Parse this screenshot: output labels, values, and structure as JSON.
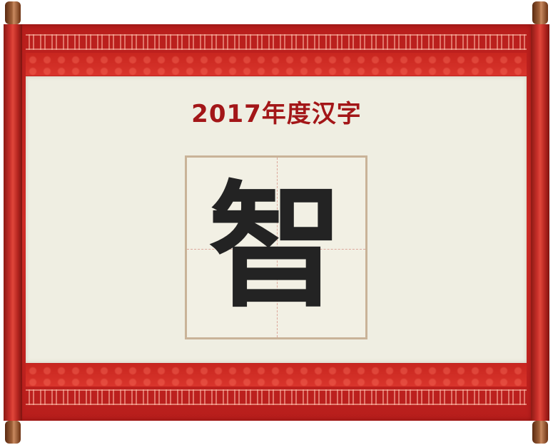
{
  "scroll": {
    "title": "2017年度汉字",
    "character": "智"
  },
  "colors": {
    "frame_red": "#c9261f",
    "title_red": "#a31618",
    "paper": "#efeee2",
    "grid_border": "#c9b398",
    "glyph": "#232323"
  }
}
